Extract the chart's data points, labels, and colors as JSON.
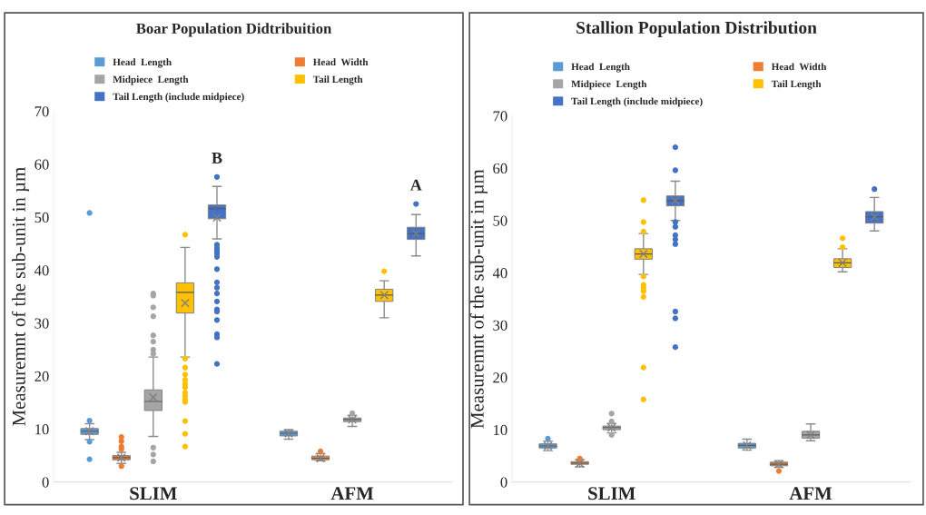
{
  "chart_data": [
    {
      "type": "box",
      "title": "Boar Population Didtribuition",
      "ylabel": "Measuremnt of the sub-unit in µm",
      "categories": [
        "SLIM",
        "AFM"
      ],
      "ylim": [
        0,
        70
      ],
      "yticks": [
        0,
        10,
        20,
        30,
        40,
        50,
        60,
        70
      ],
      "legend": "top",
      "marker": "circle",
      "annotations": [
        "B",
        "A"
      ],
      "series": [
        {
          "name": "Head  Length",
          "color": "#5b9bd5",
          "boxes": [
            {
              "low": 8.0,
              "q1": 9.0,
              "median": 9.6,
              "q3": 10.1,
              "high": 11.0,
              "mean": 9.6,
              "outliers": [
                50.8,
                11.6,
                7.6,
                4.3
              ]
            },
            {
              "low": 8.1,
              "q1": 8.7,
              "median": 9.2,
              "q3": 9.6,
              "high": 9.9,
              "mean": 9.2
            }
          ]
        },
        {
          "name": "Head  Width",
          "color": "#ed7d31",
          "boxes": [
            {
              "low": 3.5,
              "q1": 4.2,
              "median": 4.6,
              "q3": 5.0,
              "high": 5.6,
              "mean": 4.6,
              "outliers": [
                8.5,
                7.7,
                6.7,
                6.2,
                3.0
              ]
            },
            {
              "low": 4.0,
              "q1": 4.2,
              "median": 4.5,
              "q3": 4.9,
              "high": 5.4,
              "mean": 4.5,
              "outliers": [
                5.8
              ]
            }
          ]
        },
        {
          "name": "Midpiece  Length",
          "color": "#a5a5a5",
          "boxes": [
            {
              "low": 8.6,
              "q1": 13.5,
              "median": 15.2,
              "q3": 17.4,
              "high": 23.6,
              "mean": 16.0,
              "outliers": [
                35.6,
                35.2,
                33.0,
                31.3,
                27.7,
                26.5,
                25.0,
                24.2,
                6.5,
                5.2,
                3.9
              ]
            },
            {
              "low": 10.5,
              "q1": 11.4,
              "median": 11.8,
              "q3": 12.1,
              "high": 12.6,
              "mean": 11.8,
              "outliers": [
                13.0
              ]
            }
          ]
        },
        {
          "name": "Tail Length",
          "color": "#ffc000",
          "boxes": [
            {
              "low": 23.6,
              "q1": 31.9,
              "median": 35.8,
              "q3": 37.6,
              "high": 44.3,
              "mean": 33.8,
              "outliers": [
                46.7,
                23.3,
                21.6,
                20.3,
                19.3,
                18.5,
                17.9,
                16.9,
                16.2,
                15.6,
                15.1,
                11.5,
                9.1,
                6.7
              ]
            },
            {
              "low": 31.0,
              "q1": 34.1,
              "median": 35.3,
              "q3": 36.4,
              "high": 38.0,
              "mean": 35.3,
              "outliers": [
                39.8
              ]
            }
          ]
        },
        {
          "name": "Tail Length (include midpiece)",
          "color": "#4472c4",
          "boxes": [
            {
              "low": 45.9,
              "q1": 49.7,
              "median": 51.6,
              "q3": 52.3,
              "high": 55.8,
              "mean": 49.9,
              "outliers": [
                57.6,
                44.8,
                44.2,
                43.6,
                43.1,
                42.5,
                40.2,
                37.7,
                36.7,
                35.6,
                34.1,
                32.6,
                32.2,
                30.6,
                27.9,
                27.3,
                22.3
              ]
            },
            {
              "low": 42.7,
              "q1": 45.8,
              "median": 46.9,
              "q3": 48.1,
              "high": 50.5,
              "mean": 46.9,
              "outliers": [
                52.5
              ]
            }
          ]
        }
      ]
    },
    {
      "type": "box",
      "title": "Stallion Population Distribution",
      "ylabel": "Measuremnt of the sub-unit in µm",
      "categories": [
        "SLIM",
        "AFM"
      ],
      "ylim": [
        0,
        70
      ],
      "yticks": [
        0,
        10,
        20,
        30,
        40,
        50,
        60,
        70
      ],
      "legend": "top",
      "marker": "circle",
      "series": [
        {
          "name": "Head  Length",
          "color": "#5b9bd5",
          "boxes": [
            {
              "low": 6.0,
              "q1": 6.5,
              "median": 6.9,
              "q3": 7.3,
              "high": 7.8,
              "mean": 6.9,
              "outliers": [
                8.3
              ]
            },
            {
              "low": 6.1,
              "q1": 6.5,
              "median": 7.0,
              "q3": 7.4,
              "high": 8.2,
              "mean": 7.0
            }
          ]
        },
        {
          "name": "Head  Width",
          "color": "#ed7d31",
          "boxes": [
            {
              "low": 2.9,
              "q1": 3.4,
              "median": 3.6,
              "q3": 3.9,
              "high": 4.3,
              "mean": 3.6,
              "outliers": [
                4.5
              ]
            },
            {
              "low": 2.8,
              "q1": 3.1,
              "median": 3.4,
              "q3": 3.8,
              "high": 4.1,
              "mean": 3.4,
              "outliers": [
                2.1
              ]
            }
          ]
        },
        {
          "name": "Midpiece  Length",
          "color": "#a5a5a5",
          "boxes": [
            {
              "low": 9.4,
              "q1": 10.0,
              "median": 10.4,
              "q3": 10.7,
              "high": 11.2,
              "mean": 10.4,
              "outliers": [
                13.1,
                11.6,
                9.0
              ]
            },
            {
              "low": 7.9,
              "q1": 8.4,
              "median": 9.0,
              "q3": 9.7,
              "high": 11.1,
              "mean": 9.0
            }
          ]
        },
        {
          "name": "Tail Length",
          "color": "#ffc000",
          "boxes": [
            {
              "low": 39.7,
              "q1": 42.6,
              "median": 43.6,
              "q3": 44.6,
              "high": 47.5,
              "mean": 43.6,
              "outliers": [
                53.9,
                49.7,
                47.9,
                39.3,
                37.7,
                37.1,
                36.5,
                35.4,
                21.9,
                15.8
              ]
            },
            {
              "low": 40.2,
              "q1": 41.0,
              "median": 41.9,
              "q3": 42.7,
              "high": 44.6,
              "mean": 41.9,
              "outliers": [
                46.6,
                44.9
              ]
            }
          ]
        },
        {
          "name": "Tail Length (include midpiece)",
          "color": "#4472c4",
          "boxes": [
            {
              "low": 50.0,
              "q1": 52.8,
              "median": 53.8,
              "q3": 54.7,
              "high": 57.5,
              "mean": 53.8,
              "outliers": [
                64.0,
                59.6,
                49.7,
                48.8,
                47.2,
                46.4,
                45.5,
                32.6,
                31.3,
                25.8
              ]
            },
            {
              "low": 48.0,
              "q1": 49.5,
              "median": 50.7,
              "q3": 51.7,
              "high": 54.4,
              "mean": 50.7,
              "outliers": [
                56.0
              ]
            }
          ]
        }
      ]
    }
  ]
}
